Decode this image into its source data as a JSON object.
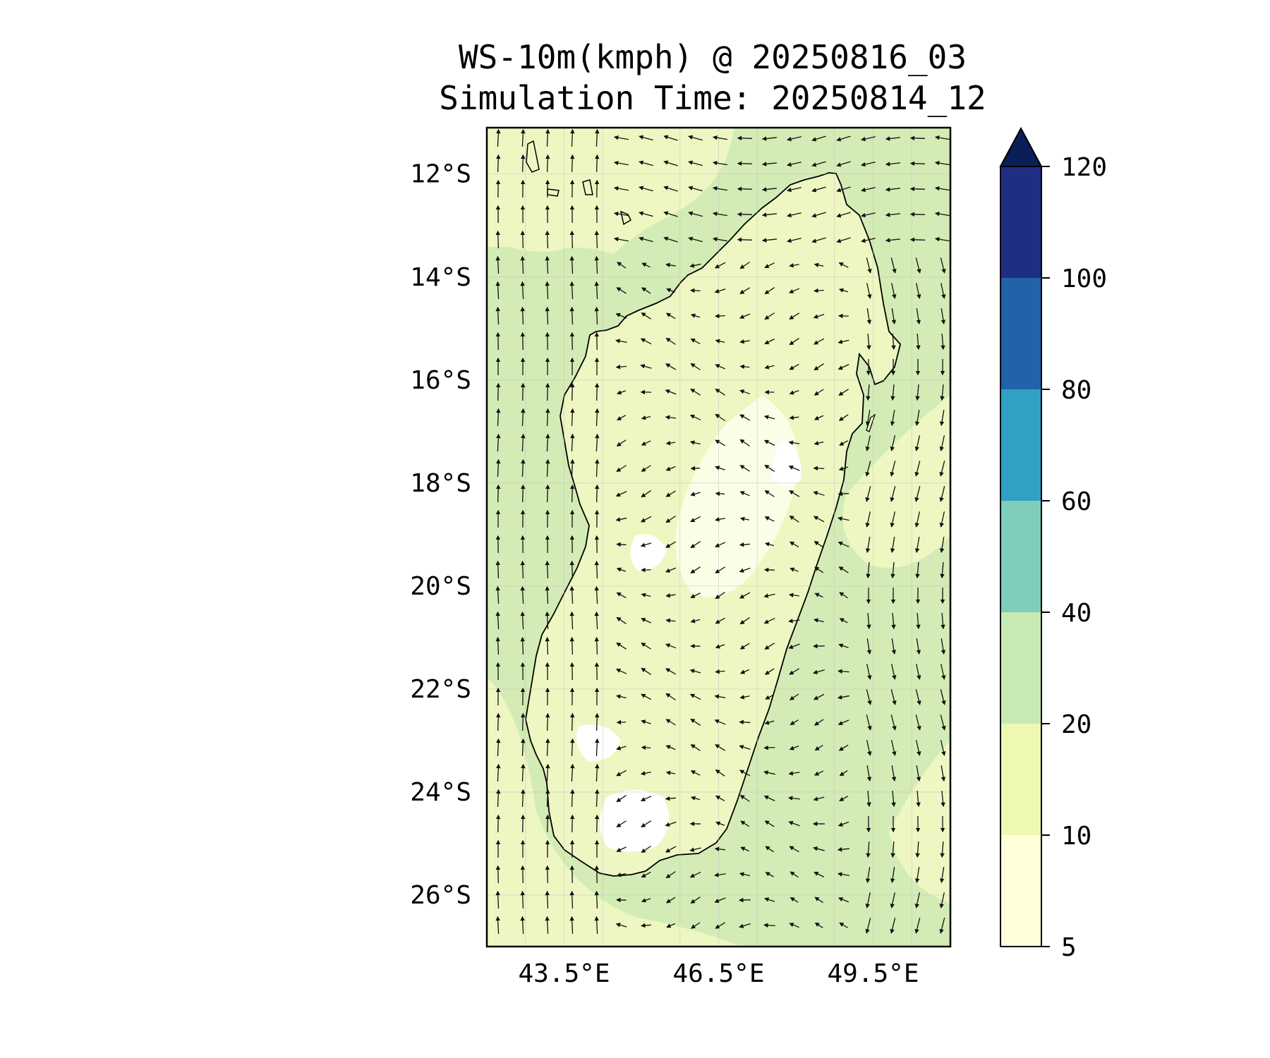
{
  "title_line1": "WS-10m(kmph) @ 20250816_03",
  "title_line2": "Simulation Time: 20250814_12",
  "map": {
    "lon_range": [
      42,
      51
    ],
    "lat_range": [
      -27,
      -11.1
    ],
    "lat_ticks": [
      {
        "value": -12,
        "label": "12°S"
      },
      {
        "value": -14,
        "label": "14°S"
      },
      {
        "value": -16,
        "label": "16°S"
      },
      {
        "value": -18,
        "label": "18°S"
      },
      {
        "value": -20,
        "label": "20°S"
      },
      {
        "value": -22,
        "label": "22°S"
      },
      {
        "value": -24,
        "label": "24°S"
      },
      {
        "value": -26,
        "label": "26°S"
      }
    ],
    "lon_ticks": [
      {
        "value": 43.5,
        "label": "43.5°E"
      },
      {
        "value": 46.5,
        "label": "46.5°E"
      },
      {
        "value": 49.5,
        "label": "49.5°E"
      }
    ],
    "land_color": "#eef7c2",
    "ocean_color": "#d3ecb5",
    "coastline_color": "#000000",
    "arrow_color": "#111111"
  },
  "colorbar": {
    "levels": [
      {
        "label": "5",
        "value": 5,
        "color": "#ffffd9"
      },
      {
        "label": "10",
        "value": 10,
        "color": "#edf8b1"
      },
      {
        "label": "20",
        "value": 20,
        "color": "#c7e9b4"
      },
      {
        "label": "40",
        "value": 40,
        "color": "#7fcdbb"
      },
      {
        "label": "60",
        "value": 60,
        "color": "#2ea1c4"
      },
      {
        "label": "80",
        "value": 80,
        "color": "#2262a9"
      },
      {
        "label": "100",
        "value": 100,
        "color": "#1f2e82"
      },
      {
        "label": "120",
        "value": 120,
        "color": "#0b1e58"
      }
    ],
    "extend": "max"
  }
}
